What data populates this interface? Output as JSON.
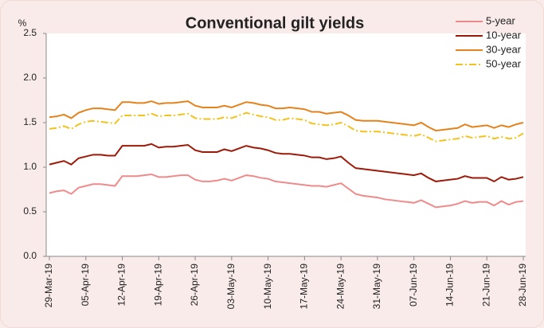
{
  "chart_data": {
    "type": "line",
    "title": "Conventional gilt yields",
    "y_label": "%",
    "categories": [
      "29-Mar-19",
      null,
      null,
      null,
      null,
      "05-Apr-19",
      null,
      null,
      null,
      null,
      "12-Apr-19",
      null,
      null,
      null,
      null,
      "19-Apr-19",
      null,
      null,
      null,
      null,
      "26-Apr-19",
      null,
      null,
      null,
      null,
      "03-May-19",
      null,
      null,
      null,
      null,
      "10-May-19",
      null,
      null,
      null,
      null,
      "17-May-19",
      null,
      null,
      null,
      null,
      "24-May-19",
      null,
      null,
      null,
      null,
      "31-May-19",
      null,
      null,
      null,
      null,
      "07-Jun-19",
      null,
      null,
      null,
      null,
      "14-Jun-19",
      null,
      null,
      null,
      null,
      "21-Jun-19",
      null,
      null,
      null,
      null,
      "28-Jun-19"
    ],
    "series": [
      {
        "name": "5-year",
        "color": "#f08a8a",
        "dash": "solid",
        "values": [
          0.71,
          0.73,
          0.74,
          0.7,
          0.77,
          0.79,
          0.81,
          0.81,
          0.8,
          0.79,
          0.9,
          0.9,
          0.9,
          0.91,
          0.92,
          0.89,
          0.89,
          0.9,
          0.91,
          0.91,
          0.86,
          0.84,
          0.84,
          0.85,
          0.87,
          0.85,
          0.88,
          0.91,
          0.9,
          0.88,
          0.87,
          0.84,
          0.83,
          0.82,
          0.81,
          0.8,
          0.79,
          0.79,
          0.78,
          0.8,
          0.82,
          0.76,
          0.7,
          0.68,
          0.67,
          0.66,
          0.64,
          0.63,
          0.62,
          0.61,
          0.6,
          0.63,
          0.59,
          0.55,
          0.56,
          0.57,
          0.59,
          0.62,
          0.6,
          0.61,
          0.61,
          0.57,
          0.62,
          0.58,
          0.61,
          0.62
        ]
      },
      {
        "name": "10-year",
        "color": "#9e1a08",
        "dash": "solid",
        "values": [
          1.03,
          1.05,
          1.07,
          1.03,
          1.1,
          1.12,
          1.14,
          1.14,
          1.13,
          1.13,
          1.24,
          1.24,
          1.24,
          1.24,
          1.26,
          1.22,
          1.23,
          1.23,
          1.24,
          1.25,
          1.19,
          1.17,
          1.17,
          1.17,
          1.2,
          1.18,
          1.21,
          1.24,
          1.22,
          1.21,
          1.19,
          1.16,
          1.15,
          1.15,
          1.14,
          1.13,
          1.11,
          1.11,
          1.09,
          1.1,
          1.12,
          1.05,
          0.99,
          0.98,
          0.97,
          0.96,
          0.95,
          0.94,
          0.93,
          0.92,
          0.91,
          0.93,
          0.88,
          0.84,
          0.85,
          0.86,
          0.87,
          0.9,
          0.88,
          0.88,
          0.88,
          0.84,
          0.89,
          0.86,
          0.87,
          0.89
        ]
      },
      {
        "name": "30-year",
        "color": "#e5821c",
        "dash": "solid",
        "values": [
          1.56,
          1.57,
          1.59,
          1.55,
          1.61,
          1.64,
          1.66,
          1.66,
          1.65,
          1.64,
          1.73,
          1.73,
          1.72,
          1.72,
          1.74,
          1.71,
          1.72,
          1.72,
          1.73,
          1.74,
          1.69,
          1.67,
          1.67,
          1.67,
          1.69,
          1.67,
          1.7,
          1.73,
          1.72,
          1.7,
          1.69,
          1.66,
          1.66,
          1.67,
          1.66,
          1.65,
          1.62,
          1.62,
          1.6,
          1.61,
          1.62,
          1.58,
          1.53,
          1.52,
          1.52,
          1.52,
          1.51,
          1.5,
          1.49,
          1.48,
          1.47,
          1.5,
          1.45,
          1.41,
          1.42,
          1.43,
          1.44,
          1.48,
          1.45,
          1.46,
          1.47,
          1.44,
          1.47,
          1.45,
          1.48,
          1.5
        ]
      },
      {
        "name": "50-year",
        "color": "#f4c21c",
        "dash": "dash-dot",
        "values": [
          1.43,
          1.44,
          1.46,
          1.43,
          1.48,
          1.51,
          1.52,
          1.51,
          1.5,
          1.49,
          1.58,
          1.58,
          1.58,
          1.58,
          1.6,
          1.57,
          1.58,
          1.58,
          1.59,
          1.6,
          1.55,
          1.54,
          1.54,
          1.54,
          1.56,
          1.55,
          1.58,
          1.61,
          1.59,
          1.57,
          1.56,
          1.53,
          1.53,
          1.55,
          1.54,
          1.53,
          1.49,
          1.48,
          1.47,
          1.48,
          1.5,
          1.46,
          1.41,
          1.4,
          1.4,
          1.4,
          1.39,
          1.38,
          1.37,
          1.36,
          1.35,
          1.37,
          1.33,
          1.29,
          1.3,
          1.31,
          1.32,
          1.35,
          1.33,
          1.34,
          1.35,
          1.32,
          1.34,
          1.32,
          1.33,
          1.38
        ]
      }
    ],
    "ylim": [
      0,
      2.5
    ],
    "yticks": [
      {
        "value": 0,
        "label": "0.0"
      },
      0.5,
      {
        "value": 1,
        "label": "1.0"
      },
      1.5,
      {
        "value": 2,
        "label": "2.0"
      },
      2.5
    ],
    "grid": false,
    "legend": "top-right"
  }
}
